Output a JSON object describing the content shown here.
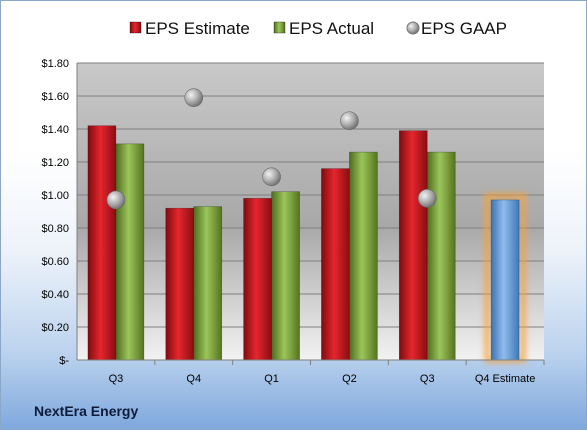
{
  "company_label": "NextEra Energy",
  "chart_data": {
    "type": "bar",
    "title": "",
    "xlabel": "",
    "ylabel": "",
    "categories": [
      "Q3",
      "Q4",
      "Q1",
      "Q2",
      "Q3",
      "Q4 Estimate"
    ],
    "series": [
      {
        "name": "EPS Estimate",
        "kind": "bar",
        "color": "#c0191f",
        "values": [
          1.42,
          0.92,
          0.98,
          1.16,
          1.39,
          null
        ]
      },
      {
        "name": "EPS Actual",
        "kind": "bar",
        "color": "#7aa13a",
        "values": [
          1.31,
          0.93,
          1.02,
          1.26,
          1.26,
          null
        ]
      },
      {
        "name": "EPS GAAP",
        "kind": "marker",
        "color": "#9a9a9a",
        "values": [
          0.97,
          1.59,
          1.11,
          1.45,
          0.98,
          null
        ]
      },
      {
        "name": "Q4 Estimate",
        "kind": "bar",
        "color": "#5b9bd5",
        "highlight": "#f5a23a",
        "values": [
          null,
          null,
          null,
          null,
          null,
          0.97
        ]
      }
    ],
    "ylim": [
      0,
      1.8
    ],
    "yticks": [
      0,
      0.2,
      0.4,
      0.6,
      0.8,
      1.0,
      1.2,
      1.4,
      1.6,
      1.8
    ],
    "ytick_labels": [
      "$-",
      "$0.20",
      "$0.40",
      "$0.60",
      "$0.80",
      "$1.00",
      "$1.20",
      "$1.40",
      "$1.60",
      "$1.80"
    ],
    "grid": true,
    "legend_position": "top"
  }
}
